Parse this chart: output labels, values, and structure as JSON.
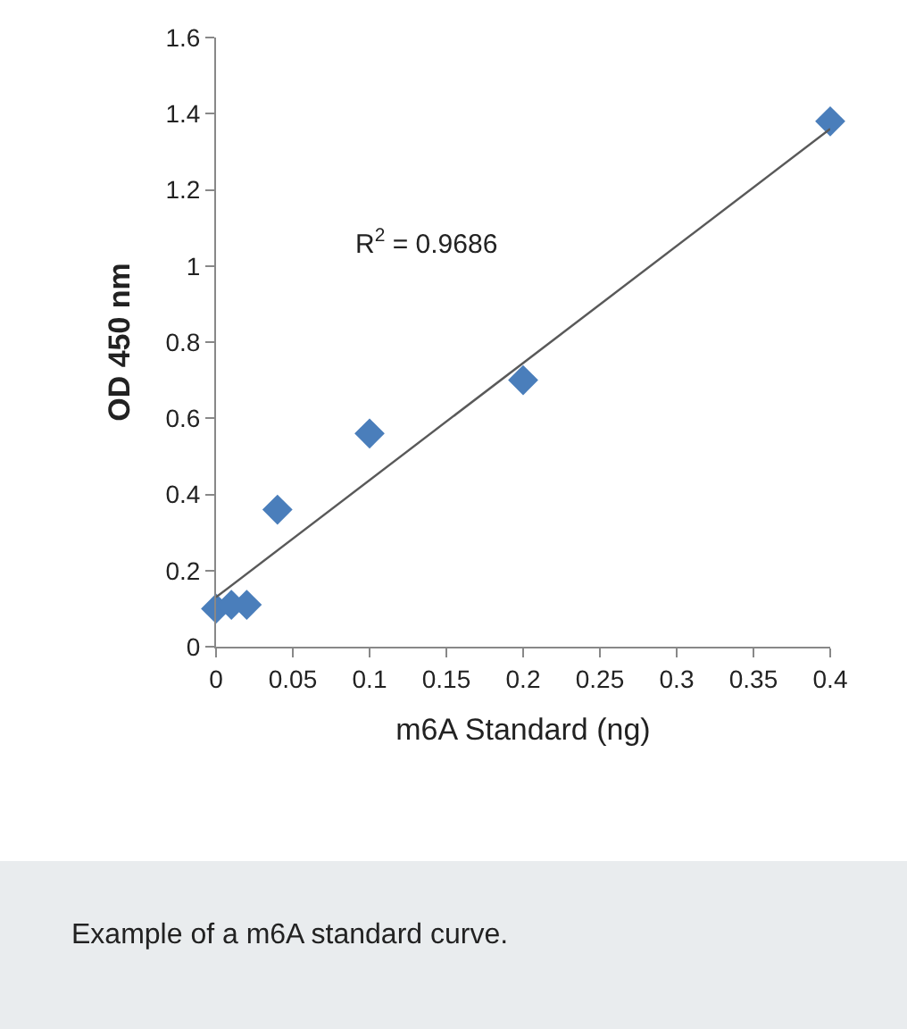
{
  "chart_data": {
    "type": "scatter",
    "xlabel": "m6A Standard (ng)",
    "ylabel": "OD 450 nm",
    "x": [
      0,
      0.01,
      0.02,
      0.04,
      0.1,
      0.2,
      0.4
    ],
    "series": [
      {
        "color": "#4a7ebb",
        "values": [
          0.1,
          0.11,
          0.11,
          0.36,
          0.56,
          0.7,
          1.38
        ],
        "marker": "diamond"
      },
      {
        "type": "line",
        "color": "#595959",
        "x": [
          0,
          0.4
        ],
        "values": [
          0.13,
          1.36
        ],
        "marker": "none"
      }
    ],
    "xlim": [
      0,
      0.4
    ],
    "ylim": [
      0,
      1.6
    ],
    "xticks": [
      0,
      0.05,
      0.1,
      0.15,
      0.2,
      0.25,
      0.3,
      0.35,
      0.4
    ],
    "yticks": [
      0,
      0.2,
      0.4,
      0.6,
      0.8,
      1,
      1.2,
      1.4,
      1.6
    ],
    "annotations": [
      "R$^{2}$ = 0.9686",
      "Example of a m6A standard curve."
    ]
  }
}
